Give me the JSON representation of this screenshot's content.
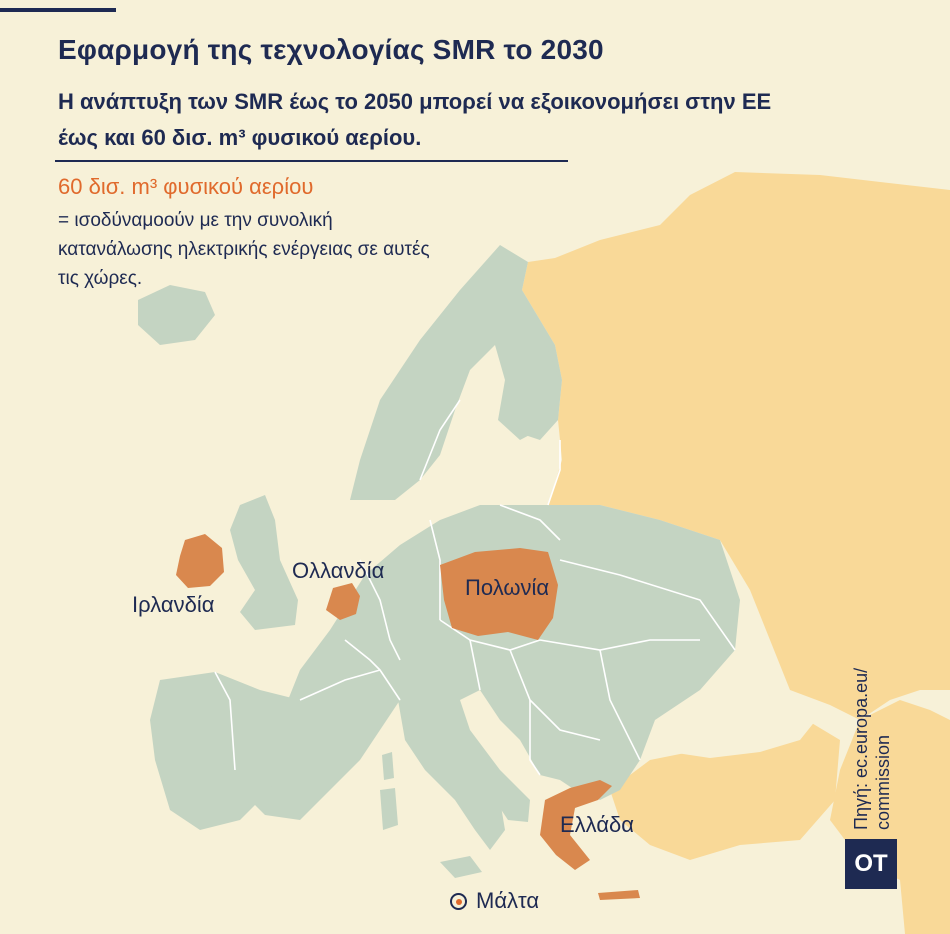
{
  "title": "Εφαρμογή της τεχνολογίας SMR το 2030",
  "subtitle": "Η ανάπτυξη των SMR έως το 2050 μπορεί να εξοικονομήσει στην ΕΕ έως και 60 δισ. m³ φυσικού αερίου.",
  "legend": {
    "highlight": "60 δισ. m³ φυσικού αερίου",
    "text": "= ισοδύναμοούν με την συνολική κατανάλωσης ηλεκτρικής ενέργειας σε αυτές τις χώρες."
  },
  "countries": {
    "ireland": "Ιρλανδία",
    "netherlands": "Ολλανδία",
    "poland": "Πολωνία",
    "greece": "Ελλάδα",
    "malta": "Μάλτα"
  },
  "source": "Πηγή: ec.europa.eu/ commission",
  "logo": "OT",
  "colors": {
    "background": "#f7f1d8",
    "europe_land": "#c4d4c2",
    "russia_region": "#f9d998",
    "highlight_country": "#d9884e",
    "legend_accent": "#e06a2c",
    "text_navy": "#1e2a52",
    "borders": "#ffffff"
  }
}
